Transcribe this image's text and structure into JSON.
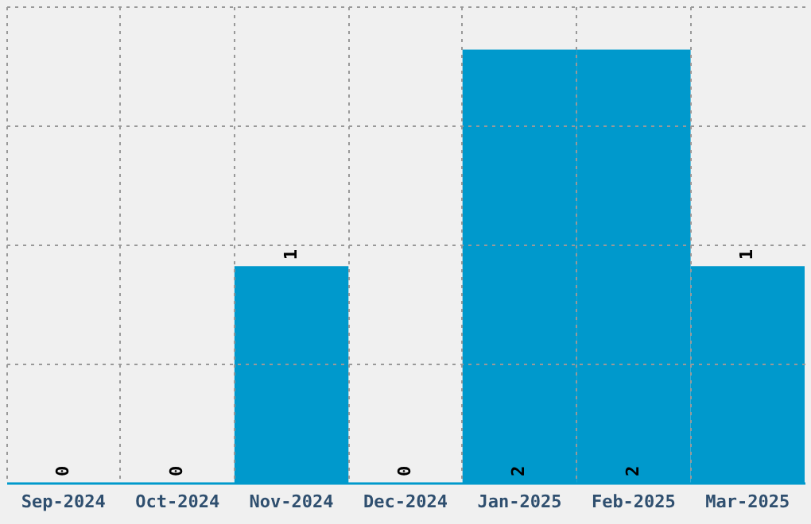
{
  "chart_data": {
    "type": "bar",
    "categories": [
      "Sep-2024",
      "Oct-2024",
      "Nov-2024",
      "Dec-2024",
      "Jan-2025",
      "Feb-2025",
      "Mar-2025"
    ],
    "values": [
      0,
      0,
      1,
      0,
      2,
      2,
      1
    ],
    "color": "#0099cc",
    "ylim": [
      0,
      2.2
    ],
    "yticks": [
      {
        "value": 0.55,
        "label": null
      },
      {
        "value": 1.1,
        "label": null
      },
      {
        "value": 1.65,
        "label": null
      },
      {
        "value": 2.2,
        "label": null
      }
    ],
    "grid": true,
    "data_labels": true,
    "tick_labels": "x"
  }
}
